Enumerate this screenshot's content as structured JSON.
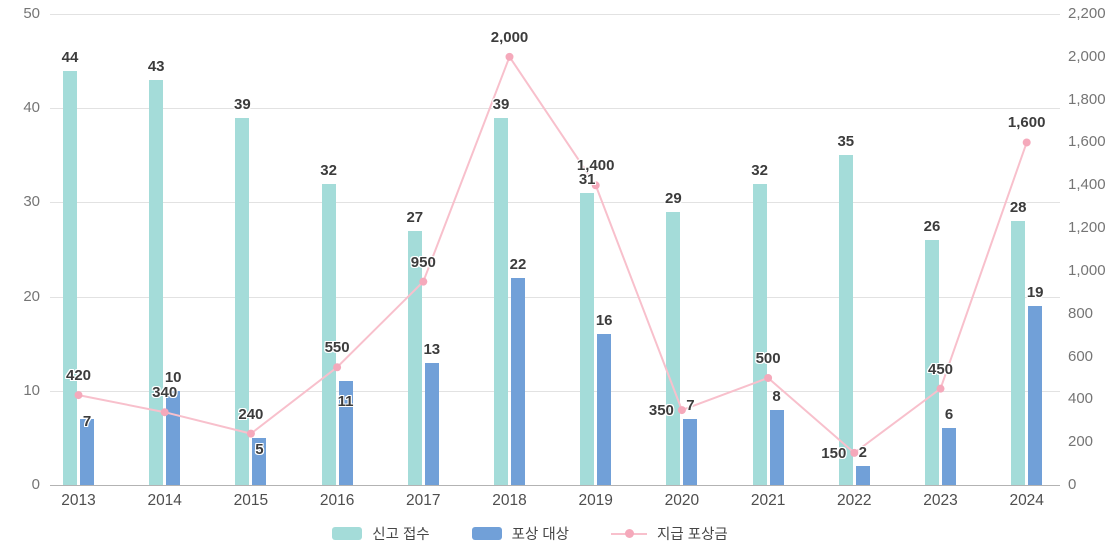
{
  "chart_data": {
    "type": "bar+line combo",
    "title": "",
    "categories": [
      "2013",
      "2014",
      "2015",
      "2016",
      "2017",
      "2018",
      "2019",
      "2020",
      "2021",
      "2022",
      "2023",
      "2024"
    ],
    "series": [
      {
        "name": "신고 접수",
        "type": "bar",
        "axis": "left",
        "color": "#a4dcd9",
        "values": [
          44,
          43,
          39,
          32,
          27,
          39,
          31,
          29,
          32,
          35,
          26,
          28
        ]
      },
      {
        "name": "포상 대상",
        "type": "bar",
        "axis": "left",
        "color": "#71a0d8",
        "values": [
          7,
          10,
          5,
          11,
          13,
          22,
          16,
          7,
          8,
          2,
          6,
          19
        ],
        "label_inside_dy": {
          "0": -6,
          "2": 3,
          "3": 12
        }
      },
      {
        "name": "지급 포상금",
        "type": "line",
        "axis": "right",
        "color": "#f8c0cc",
        "marker_color": "#f5a9bb",
        "values": [
          420,
          340,
          240,
          550,
          950,
          2000,
          1400,
          350,
          500,
          150,
          450,
          1600
        ],
        "label_side_left_indices": [
          7,
          9
        ]
      }
    ],
    "left_axis": {
      "min": 0,
      "max": 50,
      "step": 10,
      "tick_labels": [
        "0",
        "10",
        "20",
        "30",
        "40",
        "50"
      ]
    },
    "right_axis": {
      "min": 0,
      "max": 2200,
      "step": 200,
      "tick_labels": [
        "0",
        "200",
        "400",
        "600",
        "800",
        "1,000",
        "1,200",
        "1,400",
        "1,600",
        "1,800",
        "2,000",
        "2,200"
      ]
    },
    "grid": true,
    "legend_position": "bottom",
    "colors": {
      "grid": "#e2e2e2",
      "zero_line": "#b3b3b3",
      "tick_text": "#757575",
      "label_text": "#3c3c3c",
      "x_text": "#4e4e4e"
    }
  }
}
